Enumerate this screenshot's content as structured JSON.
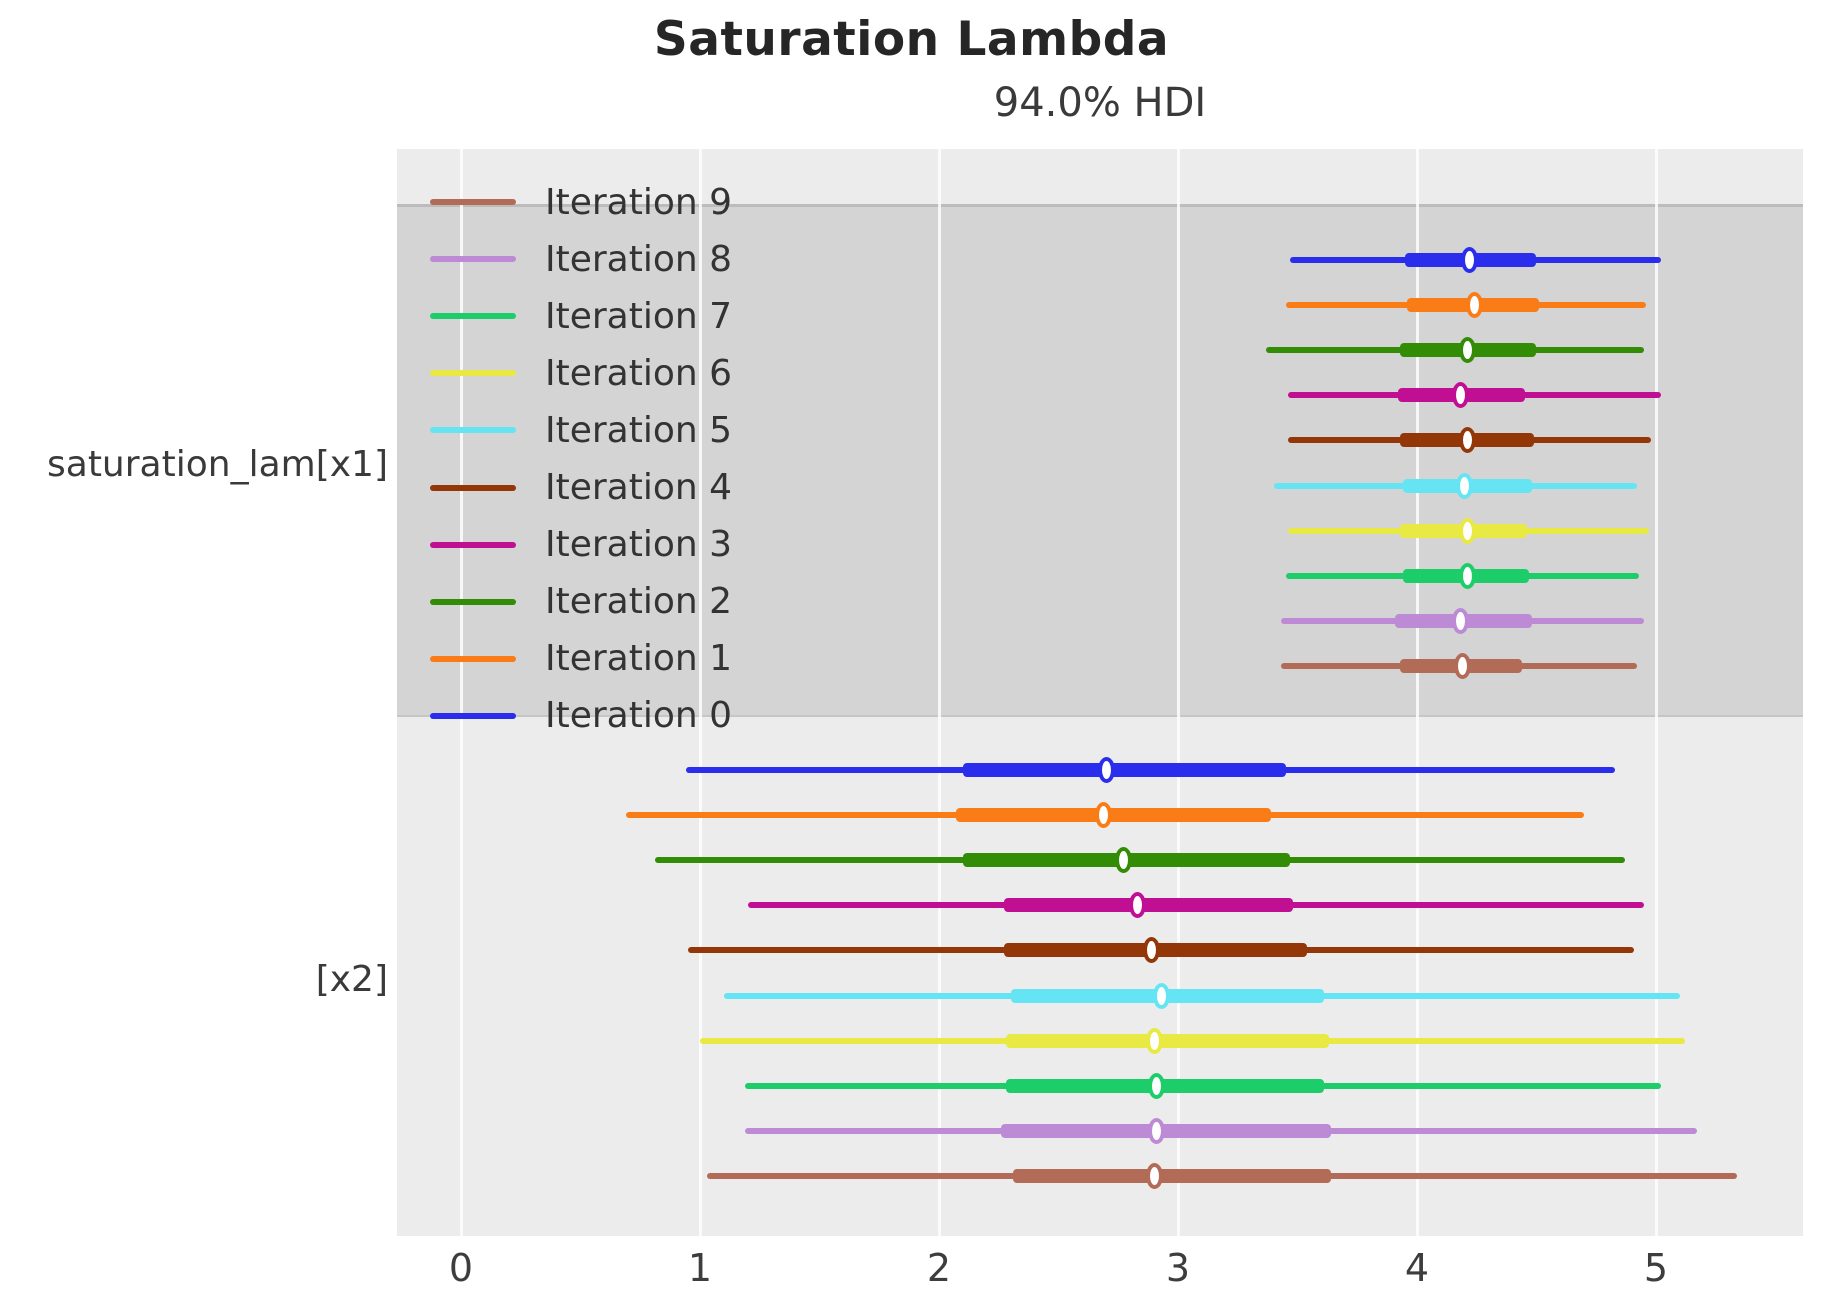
{
  "chart_data": {
    "type": "forest",
    "title": "Saturation Lambda",
    "subtitle": "94.0% HDI",
    "xlabel": "",
    "x_ticks": [
      "0",
      "1",
      "2",
      "3",
      "4",
      "5"
    ],
    "x_tick_values": [
      0,
      1,
      2,
      3,
      4,
      5
    ],
    "xlim": [
      -0.27,
      5.62
    ],
    "grid": "vertical-white-gridlines",
    "plot_background": "#ececec",
    "shaded_band_color": "#d4d4d4",
    "legend_position": "upper-left-inside",
    "legend": [
      {
        "label": "Iteration 9",
        "color": "#b16b57"
      },
      {
        "label": "Iteration 8",
        "color": "#bd8ad5"
      },
      {
        "label": "Iteration 7",
        "color": "#1ccd6a"
      },
      {
        "label": "Iteration 6",
        "color": "#e9e943"
      },
      {
        "label": "Iteration 5",
        "color": "#65e5f3"
      },
      {
        "label": "Iteration 4",
        "color": "#933708"
      },
      {
        "label": "Iteration 3",
        "color": "#c10f94"
      },
      {
        "label": "Iteration 2",
        "color": "#328c06"
      },
      {
        "label": "Iteration 1",
        "color": "#fa7c17"
      },
      {
        "label": "Iteration 0",
        "color": "#2a2eec"
      }
    ],
    "groups": [
      {
        "label": "saturation_lam[x1]",
        "shaded": true,
        "rows": [
          {
            "name": "Iteration 0",
            "color": "#2a2eec",
            "hdi_94": [
              3.47,
              5.02
            ],
            "quartile": [
              3.95,
              4.5
            ],
            "median": 4.22
          },
          {
            "name": "Iteration 1",
            "color": "#fa7c17",
            "hdi_94": [
              3.45,
              4.96
            ],
            "quartile": [
              3.96,
              4.51
            ],
            "median": 4.24
          },
          {
            "name": "Iteration 2",
            "color": "#328c06",
            "hdi_94": [
              3.37,
              4.95
            ],
            "quartile": [
              3.93,
              4.5
            ],
            "median": 4.21
          },
          {
            "name": "Iteration 3",
            "color": "#c10f94",
            "hdi_94": [
              3.46,
              5.02
            ],
            "quartile": [
              3.92,
              4.45
            ],
            "median": 4.18
          },
          {
            "name": "Iteration 4",
            "color": "#933708",
            "hdi_94": [
              3.46,
              4.98
            ],
            "quartile": [
              3.93,
              4.49
            ],
            "median": 4.21
          },
          {
            "name": "Iteration 5",
            "color": "#65e5f3",
            "hdi_94": [
              3.4,
              4.92
            ],
            "quartile": [
              3.94,
              4.48
            ],
            "median": 4.2
          },
          {
            "name": "Iteration 6",
            "color": "#e9e943",
            "hdi_94": [
              3.46,
              4.97
            ],
            "quartile": [
              3.93,
              4.46
            ],
            "median": 4.21
          },
          {
            "name": "Iteration 7",
            "color": "#1ccd6a",
            "hdi_94": [
              3.45,
              4.93
            ],
            "quartile": [
              3.94,
              4.47
            ],
            "median": 4.21
          },
          {
            "name": "Iteration 8",
            "color": "#bd8ad5",
            "hdi_94": [
              3.43,
              4.95
            ],
            "quartile": [
              3.91,
              4.48
            ],
            "median": 4.18
          },
          {
            "name": "Iteration 9",
            "color": "#b16b57",
            "hdi_94": [
              3.43,
              4.92
            ],
            "quartile": [
              3.93,
              4.44
            ],
            "median": 4.19
          }
        ]
      },
      {
        "label": "[x2]",
        "shaded": false,
        "rows": [
          {
            "name": "Iteration 0",
            "color": "#2a2eec",
            "hdi_94": [
              0.94,
              4.83
            ],
            "quartile": [
              2.1,
              3.45
            ],
            "median": 2.7
          },
          {
            "name": "Iteration 1",
            "color": "#fa7c17",
            "hdi_94": [
              0.69,
              4.7
            ],
            "quartile": [
              2.07,
              3.39
            ],
            "median": 2.69
          },
          {
            "name": "Iteration 2",
            "color": "#328c06",
            "hdi_94": [
              0.81,
              4.87
            ],
            "quartile": [
              2.1,
              3.47
            ],
            "median": 2.77
          },
          {
            "name": "Iteration 3",
            "color": "#c10f94",
            "hdi_94": [
              1.2,
              4.95
            ],
            "quartile": [
              2.27,
              3.48
            ],
            "median": 2.83
          },
          {
            "name": "Iteration 4",
            "color": "#933708",
            "hdi_94": [
              0.95,
              4.91
            ],
            "quartile": [
              2.27,
              3.54
            ],
            "median": 2.89
          },
          {
            "name": "Iteration 5",
            "color": "#65e5f3",
            "hdi_94": [
              1.1,
              5.1
            ],
            "quartile": [
              2.3,
              3.61
            ],
            "median": 2.93
          },
          {
            "name": "Iteration 6",
            "color": "#e9e943",
            "hdi_94": [
              1.0,
              5.12
            ],
            "quartile": [
              2.28,
              3.63
            ],
            "median": 2.9
          },
          {
            "name": "Iteration 7",
            "color": "#1ccd6a",
            "hdi_94": [
              1.19,
              5.02
            ],
            "quartile": [
              2.28,
              3.61
            ],
            "median": 2.91
          },
          {
            "name": "Iteration 8",
            "color": "#bd8ad5",
            "hdi_94": [
              1.19,
              5.17
            ],
            "quartile": [
              2.26,
              3.64
            ],
            "median": 2.91
          },
          {
            "name": "Iteration 9",
            "color": "#b16b57",
            "hdi_94": [
              1.03,
              5.34
            ],
            "quartile": [
              2.31,
              3.64
            ],
            "median": 2.9
          }
        ]
      }
    ]
  }
}
